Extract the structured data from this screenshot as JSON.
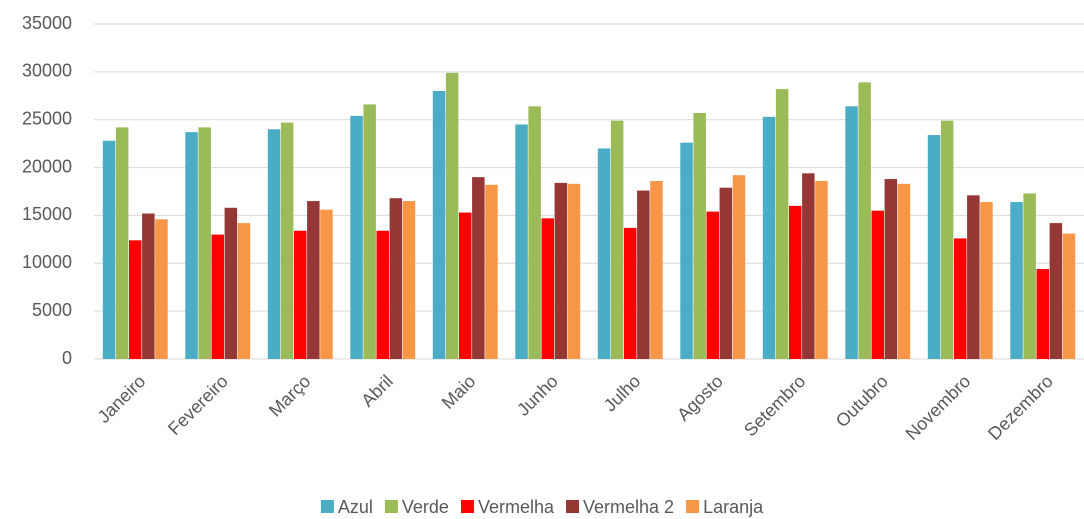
{
  "chart_data": {
    "type": "bar",
    "categories": [
      "Janeiro",
      "Fevereiro",
      "Março",
      "Abril",
      "Maio",
      "Junho",
      "Julho",
      "Agosto",
      "Setembro",
      "Outubro",
      "Novembro",
      "Dezembro"
    ],
    "series": [
      {
        "name": "Azul",
        "color": "#4bacc6",
        "values": [
          22800,
          23700,
          24000,
          25400,
          28000,
          24500,
          22000,
          22600,
          25300,
          26400,
          23400,
          16400
        ]
      },
      {
        "name": "Verde",
        "color": "#9bbb59",
        "values": [
          24200,
          24200,
          24700,
          26600,
          29900,
          26400,
          24900,
          25700,
          28200,
          28900,
          24900,
          17300
        ]
      },
      {
        "name": "Vermelha",
        "color": "#ff0000",
        "values": [
          12400,
          13000,
          13400,
          13400,
          15300,
          14700,
          13700,
          15400,
          16000,
          15500,
          12600,
          9400
        ]
      },
      {
        "name": "Vermelha 2",
        "color": "#953735",
        "values": [
          15200,
          15800,
          16500,
          16800,
          19000,
          18400,
          17600,
          17900,
          19400,
          18800,
          17100,
          14200
        ]
      },
      {
        "name": "Laranja",
        "color": "#f79646",
        "values": [
          14600,
          14200,
          15600,
          16500,
          18200,
          18300,
          18600,
          19200,
          18600,
          18300,
          16400,
          13100
        ]
      }
    ],
    "ylim": [
      0,
      35000
    ],
    "yticks": [
      0,
      5000,
      10000,
      15000,
      20000,
      25000,
      30000,
      35000
    ],
    "grid": true,
    "legend": "bottom"
  }
}
